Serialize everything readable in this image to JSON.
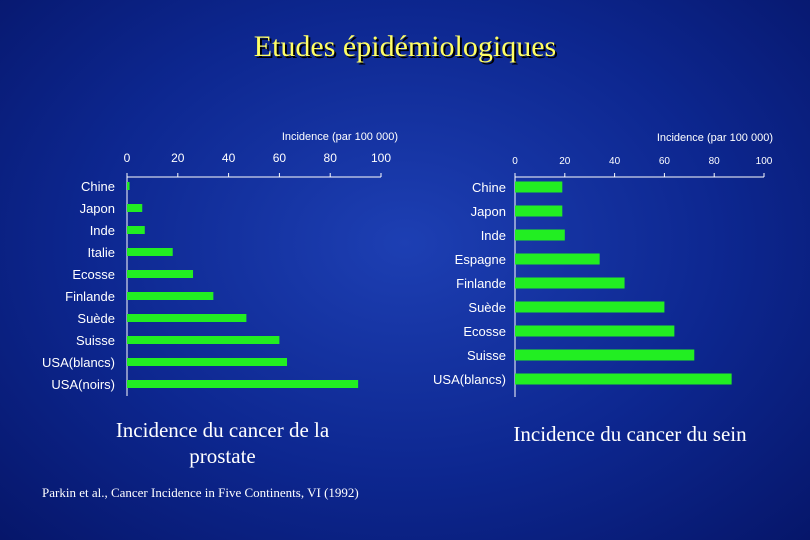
{
  "title": "Etudes épidémiologiques",
  "captions": {
    "left_line1": "Incidence du cancer de la",
    "left_line2": "prostate",
    "right": "Incidence du cancer du sein"
  },
  "citation": "Parkin et al., Cancer Incidence in Five Continents, VI (1992)",
  "colors": {
    "bar": "#22ee22",
    "axis": "#ffffff",
    "title": "#ffff66"
  },
  "chart_data": [
    {
      "type": "bar",
      "orientation": "horizontal",
      "axis_title": "Incidence (par 100 000)",
      "ticks": [
        "0",
        "20",
        "40",
        "60",
        "80",
        "100"
      ],
      "xlim": [
        0,
        100
      ],
      "categories": [
        "Chine",
        "Japon",
        "Inde",
        "Italie",
        "Ecosse",
        "Finlande",
        "Suède",
        "Suisse",
        "USA(blancs)",
        "USA(noirs)"
      ],
      "values": [
        1,
        6,
        7,
        18,
        26,
        34,
        47,
        60,
        63,
        91
      ]
    },
    {
      "type": "bar",
      "orientation": "horizontal",
      "axis_title": "Incidence (par 100 000)",
      "ticks": [
        "0",
        "20",
        "40",
        "60",
        "80",
        "100"
      ],
      "xlim": [
        0,
        100
      ],
      "categories": [
        "Chine",
        "Japon",
        "Inde",
        "Espagne",
        "Finlande",
        "Suède",
        "Ecosse",
        "Suisse",
        "USA(blancs)"
      ],
      "values": [
        19,
        19,
        20,
        34,
        44,
        60,
        64,
        72,
        87
      ]
    }
  ]
}
